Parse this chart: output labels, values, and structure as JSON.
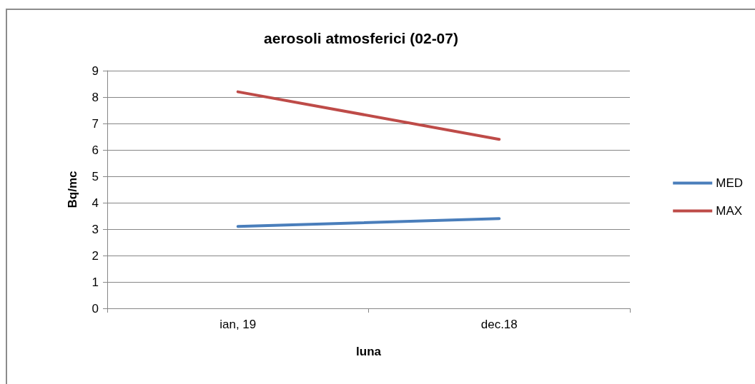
{
  "chart_data": {
    "type": "line",
    "title": "aerosoli atmosferici (02-07)",
    "xlabel": "luna",
    "ylabel": "Bq/mc",
    "categories": [
      "ian, 19",
      "dec.18"
    ],
    "series": [
      {
        "name": "MED",
        "color": "#4a7ebb",
        "values": [
          3.1,
          3.4
        ]
      },
      {
        "name": "MAX",
        "color": "#be4b48",
        "values": [
          8.2,
          6.4
        ]
      }
    ],
    "ylim": [
      0,
      9
    ],
    "yticks": [
      0,
      1,
      2,
      3,
      4,
      5,
      6,
      7,
      8,
      9
    ],
    "grid": "y",
    "legend": "right",
    "marker": "none",
    "line_style": "solid"
  }
}
